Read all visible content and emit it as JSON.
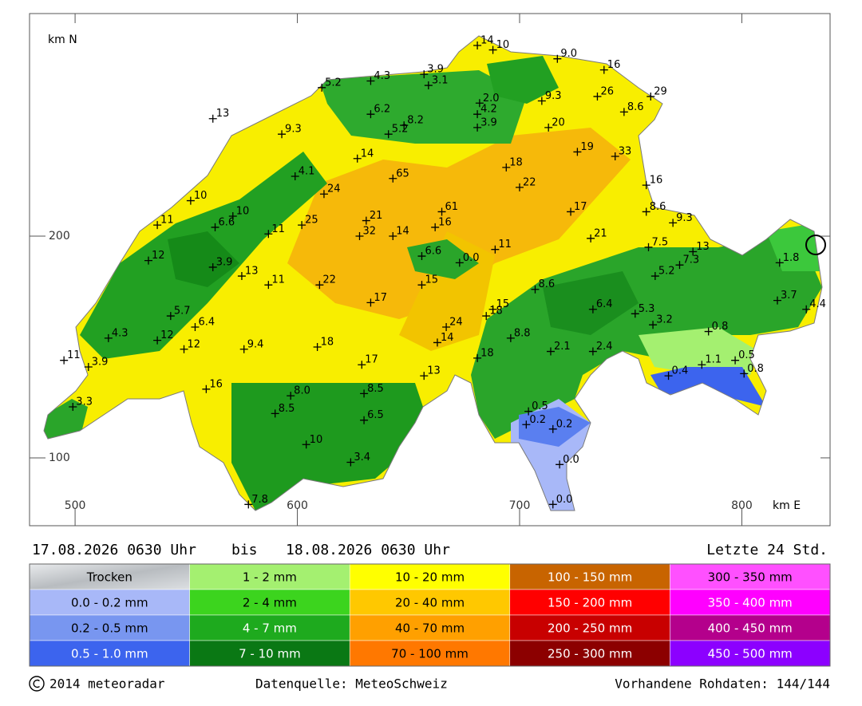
{
  "map": {
    "axis_labels": {
      "y": "km N",
      "x": "km E"
    },
    "xlim": [
      479.5,
      839.7
    ],
    "ylim": [
      69.4,
      300.4
    ],
    "xticks": [
      500,
      600,
      700,
      800
    ],
    "yticks": [
      100,
      200
    ],
    "stations": [
      {
        "e": 681,
        "n": 286,
        "label": "14"
      },
      {
        "e": 688,
        "n": 284,
        "label": "10"
      },
      {
        "e": 717,
        "n": 280,
        "label": "9.0"
      },
      {
        "e": 738,
        "n": 275,
        "label": "16"
      },
      {
        "e": 657,
        "n": 273,
        "label": "3.9"
      },
      {
        "e": 633,
        "n": 270,
        "label": "4.3"
      },
      {
        "e": 611,
        "n": 267,
        "label": "5.2"
      },
      {
        "e": 659,
        "n": 268,
        "label": "3.1"
      },
      {
        "e": 735,
        "n": 263,
        "label": "26"
      },
      {
        "e": 759,
        "n": 263,
        "label": "29"
      },
      {
        "e": 682,
        "n": 260,
        "label": "2.0"
      },
      {
        "e": 710,
        "n": 261,
        "label": "9.3"
      },
      {
        "e": 562,
        "n": 253,
        "label": "13"
      },
      {
        "e": 633,
        "n": 255,
        "label": "6.2"
      },
      {
        "e": 681,
        "n": 255,
        "label": "4.2"
      },
      {
        "e": 747,
        "n": 256,
        "label": "8.6"
      },
      {
        "e": 648,
        "n": 250,
        "label": "8.2"
      },
      {
        "e": 681,
        "n": 249,
        "label": "3.9"
      },
      {
        "e": 713,
        "n": 249,
        "label": "20"
      },
      {
        "e": 593,
        "n": 246,
        "label": "9.3"
      },
      {
        "e": 641,
        "n": 246,
        "label": "5.2"
      },
      {
        "e": 726,
        "n": 238,
        "label": "19"
      },
      {
        "e": 743,
        "n": 236,
        "label": "33"
      },
      {
        "e": 627,
        "n": 235,
        "label": "14"
      },
      {
        "e": 694,
        "n": 231,
        "label": "18"
      },
      {
        "e": 599,
        "n": 227,
        "label": "4.1"
      },
      {
        "e": 643,
        "n": 226,
        "label": "65"
      },
      {
        "e": 700,
        "n": 222,
        "label": "22"
      },
      {
        "e": 757,
        "n": 223,
        "label": "16"
      },
      {
        "e": 612,
        "n": 219,
        "label": "24"
      },
      {
        "e": 552,
        "n": 216,
        "label": "10"
      },
      {
        "e": 665,
        "n": 211,
        "label": "61"
      },
      {
        "e": 723,
        "n": 211,
        "label": "17"
      },
      {
        "e": 757,
        "n": 211,
        "label": "8.6"
      },
      {
        "e": 571,
        "n": 209,
        "label": "10"
      },
      {
        "e": 769,
        "n": 206,
        "label": "9.3"
      },
      {
        "e": 537,
        "n": 205,
        "label": "11"
      },
      {
        "e": 631,
        "n": 207,
        "label": "21"
      },
      {
        "e": 602,
        "n": 205,
        "label": "25"
      },
      {
        "e": 662,
        "n": 204,
        "label": "16"
      },
      {
        "e": 563,
        "n": 204,
        "label": "6.6"
      },
      {
        "e": 587,
        "n": 201,
        "label": "11"
      },
      {
        "e": 628,
        "n": 200,
        "label": "32"
      },
      {
        "e": 643,
        "n": 200,
        "label": "14"
      },
      {
        "e": 732,
        "n": 199,
        "label": "21"
      },
      {
        "e": 778,
        "n": 193,
        "label": "13"
      },
      {
        "e": 758,
        "n": 195,
        "label": "7.5"
      },
      {
        "e": 689,
        "n": 194,
        "label": "11"
      },
      {
        "e": 817,
        "n": 188,
        "label": "1.8"
      },
      {
        "e": 533,
        "n": 189,
        "label": "12"
      },
      {
        "e": 656,
        "n": 191,
        "label": "6.6"
      },
      {
        "e": 673,
        "n": 188,
        "label": "0.0"
      },
      {
        "e": 772,
        "n": 187,
        "label": "7.3"
      },
      {
        "e": 562,
        "n": 186,
        "label": "3.9"
      },
      {
        "e": 761,
        "n": 182,
        "label": "5.2"
      },
      {
        "e": 575,
        "n": 182,
        "label": "13"
      },
      {
        "e": 587,
        "n": 178,
        "label": "11"
      },
      {
        "e": 610,
        "n": 178,
        "label": "22"
      },
      {
        "e": 656,
        "n": 178,
        "label": "15"
      },
      {
        "e": 707,
        "n": 176,
        "label": "8.6"
      },
      {
        "e": 816,
        "n": 171,
        "label": "3.7"
      },
      {
        "e": 633,
        "n": 170,
        "label": "17"
      },
      {
        "e": 688,
        "n": 167,
        "label": "15"
      },
      {
        "e": 829,
        "n": 167,
        "label": "4.4"
      },
      {
        "e": 733,
        "n": 167,
        "label": "6.4"
      },
      {
        "e": 752,
        "n": 165,
        "label": "5.3"
      },
      {
        "e": 543,
        "n": 164,
        "label": "5.7"
      },
      {
        "e": 685,
        "n": 164,
        "label": "18"
      },
      {
        "e": 554,
        "n": 159,
        "label": "6.4"
      },
      {
        "e": 760,
        "n": 160,
        "label": "3.2"
      },
      {
        "e": 667,
        "n": 159,
        "label": "24"
      },
      {
        "e": 785,
        "n": 157,
        "label": "0.8"
      },
      {
        "e": 515,
        "n": 154,
        "label": "4.3"
      },
      {
        "e": 537,
        "n": 153,
        "label": "12"
      },
      {
        "e": 696,
        "n": 154,
        "label": "8.8"
      },
      {
        "e": 663,
        "n": 152,
        "label": "14"
      },
      {
        "e": 609,
        "n": 150,
        "label": "18"
      },
      {
        "e": 576,
        "n": 149,
        "label": "9.4"
      },
      {
        "e": 549,
        "n": 149,
        "label": "12"
      },
      {
        "e": 714,
        "n": 148,
        "label": "2.1"
      },
      {
        "e": 733,
        "n": 148,
        "label": "2.4"
      },
      {
        "e": 681,
        "n": 145,
        "label": "18"
      },
      {
        "e": 797,
        "n": 144,
        "label": "0.5"
      },
      {
        "e": 495,
        "n": 144,
        "label": "11"
      },
      {
        "e": 782,
        "n": 142,
        "label": "1.1"
      },
      {
        "e": 629,
        "n": 142,
        "label": "17"
      },
      {
        "e": 506,
        "n": 141,
        "label": "3.9"
      },
      {
        "e": 801,
        "n": 138,
        "label": "0.8"
      },
      {
        "e": 767,
        "n": 137,
        "label": "0.4"
      },
      {
        "e": 657,
        "n": 137,
        "label": "13"
      },
      {
        "e": 559,
        "n": 131,
        "label": "16"
      },
      {
        "e": 597,
        "n": 128,
        "label": "8.0"
      },
      {
        "e": 630,
        "n": 129,
        "label": "8.5"
      },
      {
        "e": 499,
        "n": 123,
        "label": "3.3"
      },
      {
        "e": 704,
        "n": 121,
        "label": "0.5"
      },
      {
        "e": 590,
        "n": 120,
        "label": "8.5"
      },
      {
        "e": 630,
        "n": 117,
        "label": "6.5"
      },
      {
        "e": 703,
        "n": 115,
        "label": "0.2"
      },
      {
        "e": 715,
        "n": 113,
        "label": "0.2"
      },
      {
        "e": 604,
        "n": 106,
        "label": "10"
      },
      {
        "e": 624,
        "n": 98,
        "label": "3.4"
      },
      {
        "e": 718,
        "n": 97,
        "label": "0.0"
      },
      {
        "e": 578,
        "n": 79,
        "label": "7.8"
      },
      {
        "e": 715,
        "n": 79,
        "label": "0.0"
      }
    ]
  },
  "period": {
    "from": "17.08.2026 0630 Uhr",
    "separator": "bis",
    "to": "18.08.2026 0630 Uhr",
    "span": "Letzte 24 Std."
  },
  "legend": {
    "columns": [
      [
        {
          "label": "Trocken",
          "color": "#c4c8cc"
        },
        {
          "label": "0.0 - 0.2 mm",
          "color": "#a8b8f8"
        },
        {
          "label": "0.2 - 0.5 mm",
          "color": "#7896f0"
        },
        {
          "label": "0.5 - 1.0 mm",
          "color": "#3c64ee"
        }
      ],
      [
        {
          "label": "1 - 2 mm",
          "color": "#a4f070"
        },
        {
          "label": "2 - 4 mm",
          "color": "#3cd41e"
        },
        {
          "label": "4 - 7 mm",
          "color": "#1eaa1e"
        },
        {
          "label": "7 - 10 mm",
          "color": "#0a7814"
        }
      ],
      [
        {
          "label": "10 - 20 mm",
          "color": "#ffff00"
        },
        {
          "label": "20 - 40 mm",
          "color": "#ffc800"
        },
        {
          "label": "40 - 70 mm",
          "color": "#ffa000"
        },
        {
          "label": "70 - 100 mm",
          "color": "#ff7800"
        }
      ],
      [
        {
          "label": "100 - 150 mm",
          "color": "#c86400"
        },
        {
          "label": "150 - 200 mm",
          "color": "#ff0000"
        },
        {
          "label": "200 - 250 mm",
          "color": "#c80000"
        },
        {
          "label": "250 - 300 mm",
          "color": "#8c0000"
        }
      ],
      [
        {
          "label": "300 - 350 mm",
          "color": "#ff50ff"
        },
        {
          "label": "350 - 400 mm",
          "color": "#ff00ff"
        },
        {
          "label": "400 - 450 mm",
          "color": "#b4008c"
        },
        {
          "label": "450 - 500 mm",
          "color": "#8c00ff"
        }
      ]
    ]
  },
  "footer": {
    "copyright": "2014 meteoradar",
    "source": "Datenquelle: MeteoSchweiz",
    "raw_data": "Vorhandene Rohdaten: 144/144"
  }
}
